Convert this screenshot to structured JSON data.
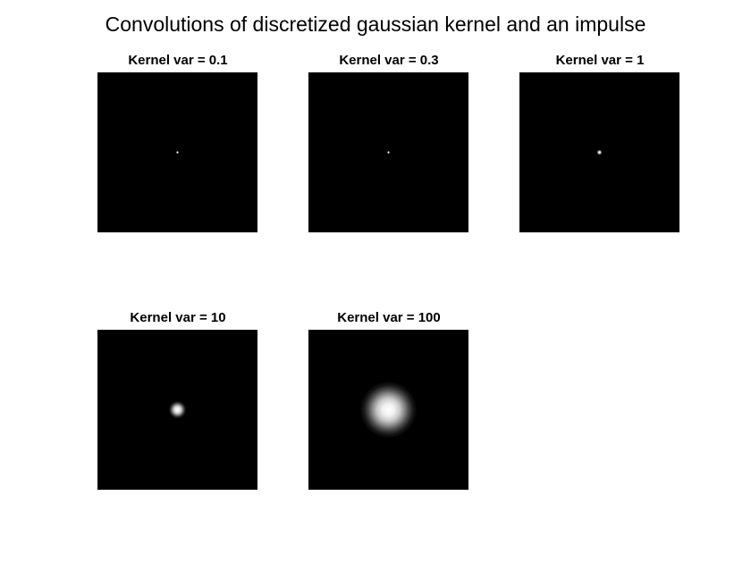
{
  "figure": {
    "title": "Convolutions of discretized gaussian kernel and an impulse"
  },
  "chart_data": [
    {
      "type": "heatmap",
      "title": "Kernel var = 0.1",
      "variance": 0.1
    },
    {
      "type": "heatmap",
      "title": "Kernel var = 0.3",
      "variance": 0.3
    },
    {
      "type": "heatmap",
      "title": "Kernel var = 1",
      "variance": 1
    },
    {
      "type": "heatmap",
      "title": "Kernel var = 10",
      "variance": 10
    },
    {
      "type": "heatmap",
      "title": "Kernel var = 100",
      "variance": 100
    }
  ],
  "colors": {
    "background": "#000000",
    "peak": "#ffffff"
  }
}
